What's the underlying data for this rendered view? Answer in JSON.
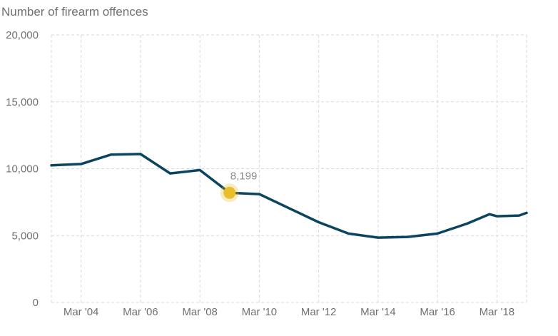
{
  "chart_data": {
    "type": "line",
    "title": "",
    "ylabel": "Number of firearm offences",
    "xlabel": "",
    "ylim": [
      0,
      20000
    ],
    "yticks": [
      0,
      5000,
      10000,
      15000,
      20000
    ],
    "ytick_labels": [
      "0",
      "5,000",
      "10,000",
      "15,000",
      "20,000"
    ],
    "xlim": [
      2003,
      2019
    ],
    "xtick_values": [
      2004,
      2006,
      2008,
      2010,
      2012,
      2014,
      2016,
      2018
    ],
    "xtick_labels": [
      "Mar '04",
      "Mar '06",
      "Mar '08",
      "Mar '10",
      "Mar '12",
      "Mar '14",
      "Mar '16",
      "Mar '18"
    ],
    "grid": true,
    "series": [
      {
        "color": "#0b4460",
        "x": [
          2003,
          2004,
          2005,
          2006,
          2007,
          2008,
          2009,
          2010,
          2011,
          2012,
          2013,
          2014,
          2015,
          2016,
          2017,
          2017.75,
          2018,
          2018.75,
          2019
        ],
        "values": [
          10250,
          10350,
          11050,
          11100,
          9650,
          9900,
          8199,
          8100,
          7050,
          6000,
          5150,
          4850,
          4900,
          5150,
          5900,
          6600,
          6450,
          6500,
          6700
        ]
      }
    ],
    "highlight": {
      "x": 2009,
      "value": 8199,
      "label": "8,199",
      "color": "#e8be2c"
    }
  }
}
